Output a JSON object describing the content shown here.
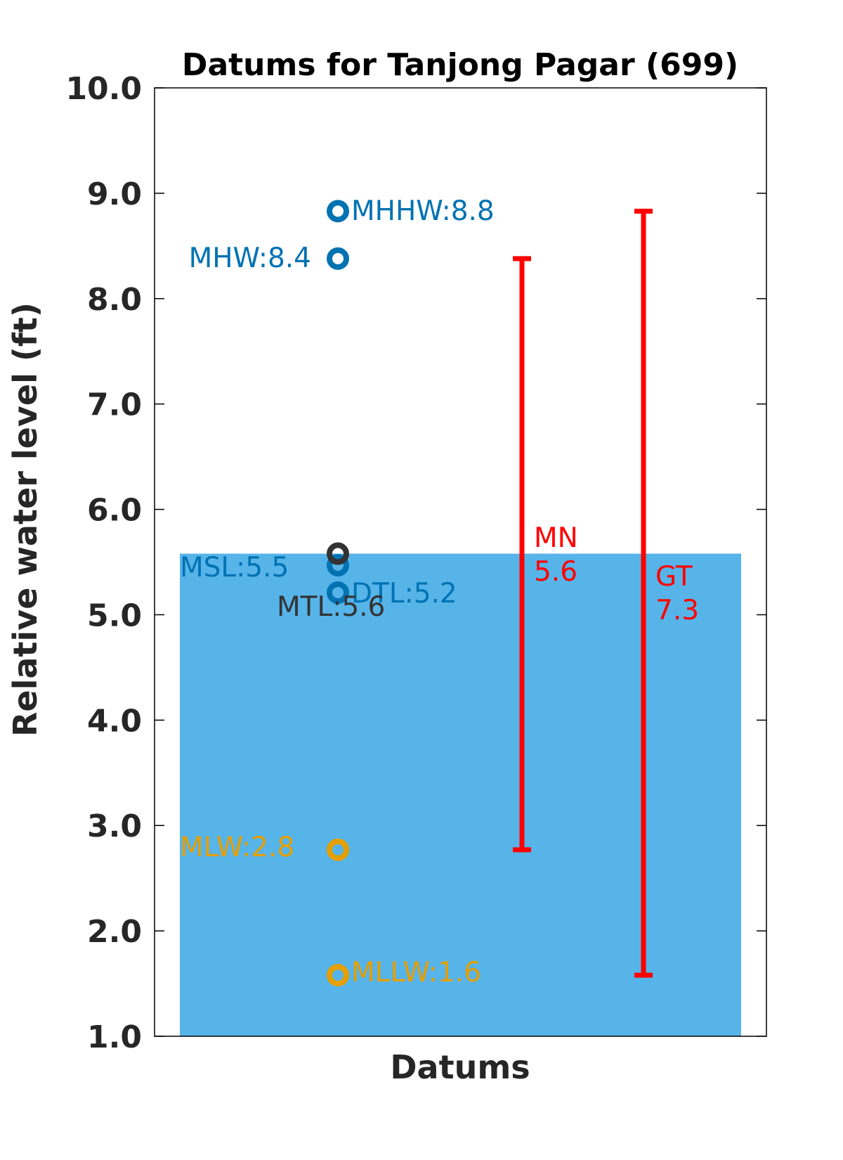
{
  "chart_data": {
    "type": "scatter",
    "title": "Datums for Tanjong Pagar (699)",
    "xlabel": "Datums",
    "ylabel": "Relative water level (ft)",
    "ylim": [
      1.0,
      10.0
    ],
    "yticks": [
      "1.0",
      "2.0",
      "3.0",
      "4.0",
      "5.0",
      "6.0",
      "7.0",
      "8.0",
      "9.0",
      "10.0"
    ],
    "fill_level": 5.58,
    "fill_color": "#56B4E9",
    "colors": {
      "high": "#0072B2",
      "low": "#E69F00",
      "mid": "#333333",
      "range": "#FF0000"
    },
    "datums": [
      {
        "name": "MHHW",
        "value": 8.83,
        "label": "MHHW:8.8",
        "group": "high"
      },
      {
        "name": "MHW",
        "value": 8.38,
        "label": "MHW:8.4",
        "group": "high"
      },
      {
        "name": "MSL",
        "value": 5.47,
        "label": "MSL:5.5",
        "group": "high"
      },
      {
        "name": "DTL",
        "value": 5.21,
        "label": "DTL:5.2",
        "group": "high"
      },
      {
        "name": "MTL",
        "value": 5.58,
        "label": "MTL:5.6",
        "group": "mid"
      },
      {
        "name": "MLW",
        "value": 2.77,
        "label": "MLW:2.8",
        "group": "low"
      },
      {
        "name": "MLLW",
        "value": 1.58,
        "label": "MLLW:1.6",
        "group": "low"
      }
    ],
    "ranges": [
      {
        "name": "MN",
        "label_line1": "MN",
        "label_line2": "5.6",
        "low": 2.77,
        "high": 8.38
      },
      {
        "name": "GT",
        "label_line1": "GT",
        "label_line2": "7.3",
        "low": 1.58,
        "high": 8.83
      }
    ]
  }
}
